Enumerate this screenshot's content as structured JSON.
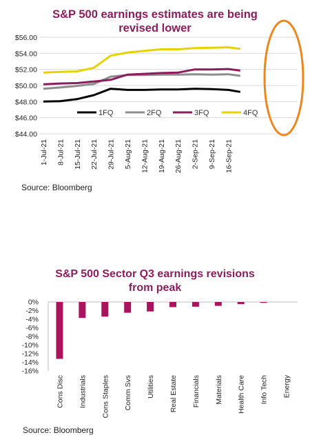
{
  "chart_data": [
    {
      "type": "line",
      "title_line1": "S&P 500 earnings estimates are being",
      "title_line2": "revised lower",
      "title_color": "#8c1d5c",
      "source": "Source: Bloomberg",
      "ylim": [
        44,
        56
      ],
      "yticks": [
        "$44.00",
        "$46.00",
        "$48.00",
        "$50.00",
        "$52.00",
        "$54.00",
        "$56.00"
      ],
      "ytick_values": [
        44,
        46,
        48,
        50,
        52,
        54,
        56
      ],
      "x": [
        "2021-07-01",
        "2021-07-08",
        "2021-07-15",
        "2021-07-22",
        "2021-07-29",
        "2021-08-05",
        "2021-08-12",
        "2021-08-19",
        "2021-08-26",
        "2021-09-02",
        "2021-09-09",
        "2021-09-16",
        "2021-09-21"
      ],
      "xticks": [
        "1-Jul-21",
        "8-Jul-21",
        "15-Jul-21",
        "22-Jul-21",
        "29-Jul-21",
        "5-Aug-21",
        "12-Aug-21",
        "19-Aug-21",
        "26-Aug-21",
        "2-Sep-21",
        "9-Sep-21",
        "16-Sep-21"
      ],
      "series": [
        {
          "name": "1FQ",
          "color": "#000000",
          "values": [
            48.0,
            48.05,
            48.3,
            48.8,
            49.6,
            49.45,
            49.45,
            49.5,
            49.5,
            49.6,
            49.55,
            49.45,
            49.2
          ]
        },
        {
          "name": "2FQ",
          "color": "#8c8c8c",
          "values": [
            49.6,
            49.75,
            49.95,
            50.2,
            51.1,
            51.3,
            51.3,
            51.35,
            51.35,
            51.4,
            51.35,
            51.4,
            51.2
          ]
        },
        {
          "name": "3FQ",
          "color": "#8c1d5c",
          "values": [
            50.15,
            50.25,
            50.3,
            50.5,
            50.7,
            51.35,
            51.45,
            51.55,
            51.6,
            52.0,
            52.0,
            52.05,
            51.85
          ]
        },
        {
          "name": "4FQ",
          "color": "#e6d200",
          "values": [
            51.6,
            51.7,
            51.75,
            52.2,
            53.7,
            54.1,
            54.3,
            54.5,
            54.5,
            54.65,
            54.7,
            54.75,
            54.55
          ]
        }
      ],
      "highlight_color": "#f0851b"
    },
    {
      "type": "bar",
      "title_line1": "S&P 500 Sector Q3 earnings revisions",
      "title_line2": "from peak",
      "title_color": "#8c1d5c",
      "bar_color": "#a8155e",
      "source": "Source: Bloomberg",
      "ylim": [
        -16,
        0
      ],
      "yticks": [
        "0%",
        "-2%",
        "-4%",
        "-6%",
        "-8%",
        "-10%",
        "-12%",
        "-14%",
        "-16%"
      ],
      "ytick_values": [
        0,
        -2,
        -4,
        -6,
        -8,
        -10,
        -12,
        -14,
        -16
      ],
      "categories": [
        "Cons Disc",
        "Industrials",
        "Cons Staples",
        "Comm Svs",
        "Utilities",
        "Real Estate",
        "Financials",
        "Materials",
        "Health Care",
        "Info Tech",
        "Energy"
      ],
      "values": [
        -13.2,
        -3.7,
        -3.4,
        -2.5,
        -2.2,
        -1.2,
        -1.1,
        -0.9,
        -0.5,
        -0.2,
        0.0
      ]
    }
  ]
}
